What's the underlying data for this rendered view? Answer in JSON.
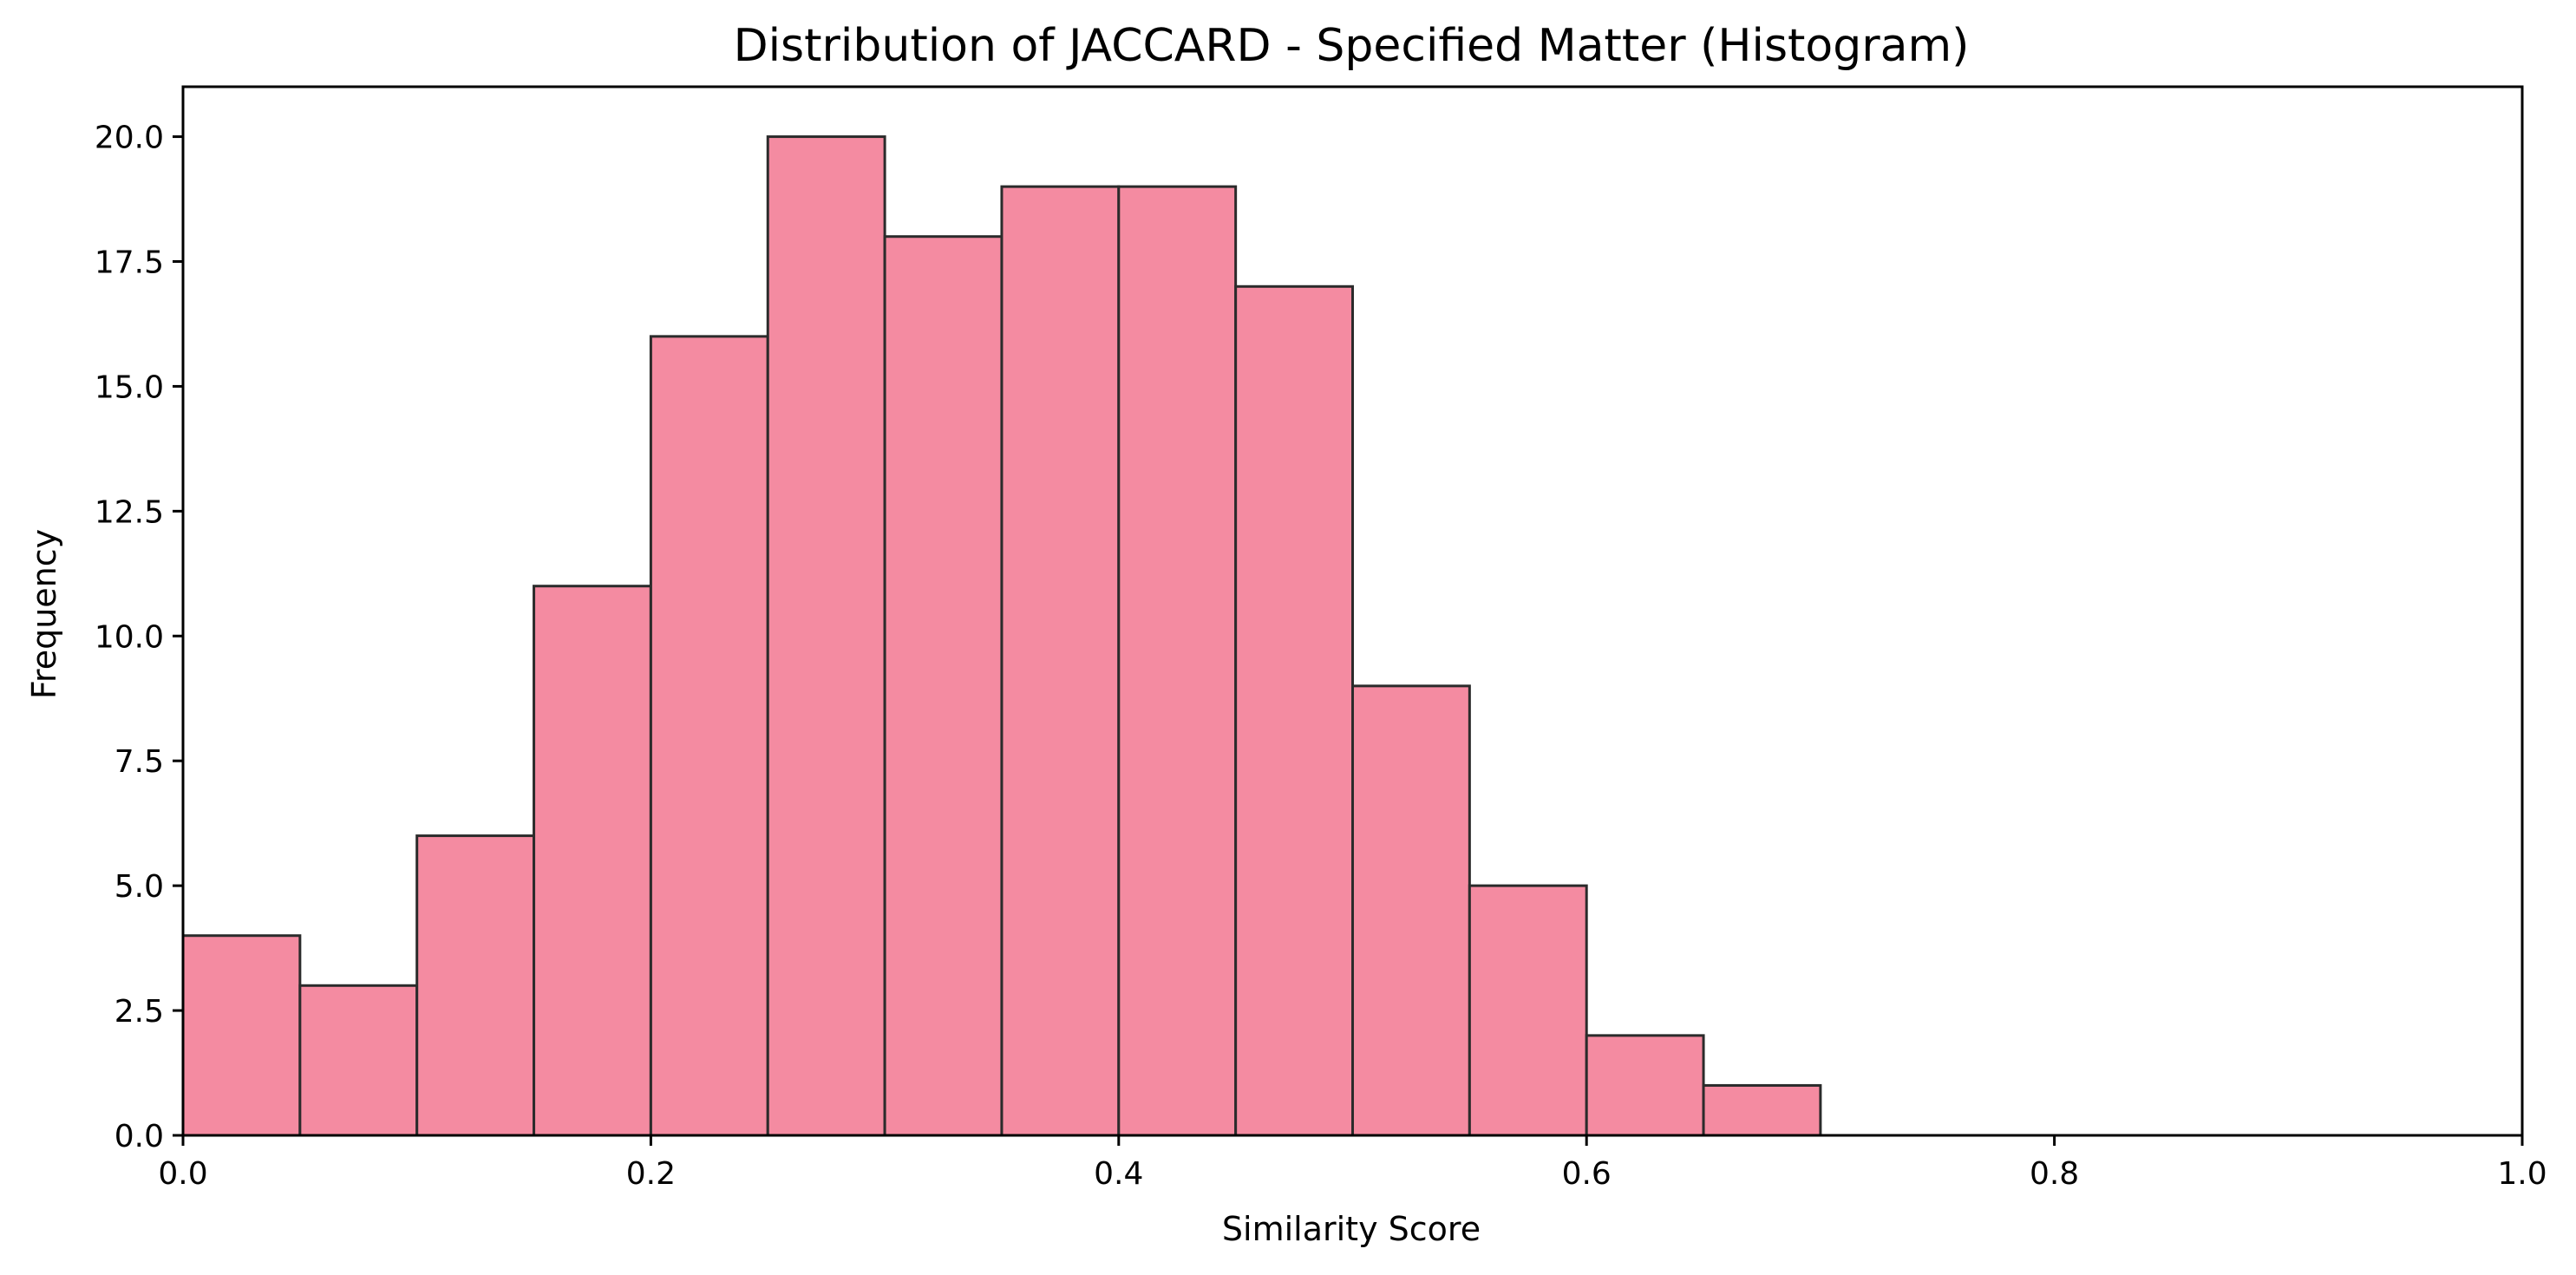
{
  "chart_data": {
    "type": "bar",
    "title": "Distribution of JACCARD - Specified Matter (Histogram)",
    "xlabel": "Similarity Score",
    "ylabel": "Frequency",
    "xlim": [
      0.0,
      1.0
    ],
    "ylim": [
      0.0,
      21.0
    ],
    "bin_width": 0.05,
    "bin_edges": [
      0.0,
      0.05,
      0.1,
      0.15,
      0.2,
      0.25,
      0.3,
      0.35,
      0.4,
      0.45,
      0.5,
      0.55,
      0.6,
      0.65,
      0.7
    ],
    "values": [
      4,
      3,
      6,
      11,
      16,
      20,
      18,
      19,
      19,
      17,
      9,
      5,
      2,
      1
    ],
    "xticks": [
      "0.0",
      "0.2",
      "0.4",
      "0.6",
      "0.8",
      "1.0"
    ],
    "xtick_values": [
      0.0,
      0.2,
      0.4,
      0.6,
      0.8,
      1.0
    ],
    "yticks": [
      "0.0",
      "2.5",
      "5.0",
      "7.5",
      "10.0",
      "12.5",
      "15.0",
      "17.5",
      "20.0"
    ],
    "ytick_values": [
      0.0,
      2.5,
      5.0,
      7.5,
      10.0,
      12.5,
      15.0,
      17.5,
      20.0
    ],
    "grid": false,
    "colors": {
      "bar_fill": "#f48ba1",
      "bar_edge": "#2b2b2b"
    }
  }
}
